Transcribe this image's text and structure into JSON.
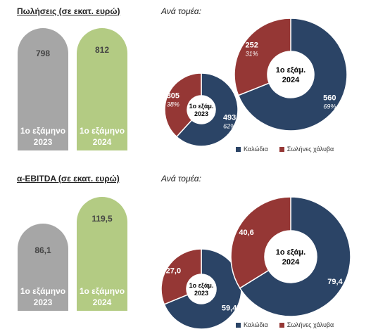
{
  "top": {
    "title": "Πωλήσεις (σε εκατ. ευρώ)",
    "ana_tomea": "Ανά τομέα:",
    "bar_2023": {
      "value": "798",
      "line1": "1ο εξάμηνο",
      "line2": "2023"
    },
    "bar_2024": {
      "value": "812",
      "line1": "1ο εξάμηνο",
      "line2": "2024"
    }
  },
  "bottom": {
    "title": "α-EBITDA (σε εκατ. ευρώ)",
    "ana_tomea": "Ανά τομέα:",
    "bar_2023": {
      "value": "86,1",
      "line1": "1ο εξάμηνο",
      "line2": "2023"
    },
    "bar_2024": {
      "value": "119,5",
      "line1": "1ο εξάμηνο",
      "line2": "2024"
    }
  },
  "legend": {
    "cables": "Καλώδια",
    "pipes": "Σωλήνες χάλυβα"
  },
  "colors": {
    "cables": "#2b4466",
    "pipes": "#953735",
    "gray": "#a6a6a6",
    "green": "#b3cb83"
  },
  "chart_data": [
    {
      "type": "bar",
      "title": "Πωλήσεις (σε εκατ. ευρώ)",
      "categories": [
        "1ο εξάμηνο 2023",
        "1ο εξάμηνο 2024"
      ],
      "values": [
        798,
        812
      ]
    },
    {
      "type": "pie",
      "title": "Ανά τομέα:",
      "donuts": [
        {
          "center_label": [
            "1ο εξάμ.",
            "2023"
          ],
          "slices": [
            {
              "name": "Καλώδια",
              "value": 493,
              "value_label": "493",
              "pct_label": "62%"
            },
            {
              "name": "Σωλήνες χάλυβα",
              "value": 305,
              "value_label": "305",
              "pct_label": "38%"
            }
          ]
        },
        {
          "center_label": [
            "1ο εξάμ.",
            "2024"
          ],
          "slices": [
            {
              "name": "Καλώδια",
              "value": 560,
              "value_label": "560",
              "pct_label": "69%"
            },
            {
              "name": "Σωλήνες χάλυβα",
              "value": 252,
              "value_label": "252",
              "pct_label": "31%"
            }
          ]
        }
      ]
    },
    {
      "type": "bar",
      "title": "α-EBITDA (σε εκατ. ευρώ)",
      "categories": [
        "1ο εξάμηνο 2023",
        "1ο εξάμηνο 2024"
      ],
      "values": [
        86.1,
        119.5
      ]
    },
    {
      "type": "pie",
      "title": "Ανά τομέα:",
      "donuts": [
        {
          "center_label": [
            "1ο εξάμ.",
            "2023"
          ],
          "slices": [
            {
              "name": "Καλώδια",
              "value": 59.4,
              "value_label": "59,4",
              "pct_label": ""
            },
            {
              "name": "Σωλήνες χάλυβα",
              "value": 27.0,
              "value_label": "27,0",
              "pct_label": ""
            }
          ]
        },
        {
          "center_label": [
            "1ο εξάμ.",
            "2024"
          ],
          "slices": [
            {
              "name": "Καλώδια",
              "value": 79.4,
              "value_label": "79,4",
              "pct_label": ""
            },
            {
              "name": "Σωλήνες χάλυβα",
              "value": 40.6,
              "value_label": "40,6",
              "pct_label": ""
            }
          ]
        }
      ]
    }
  ]
}
